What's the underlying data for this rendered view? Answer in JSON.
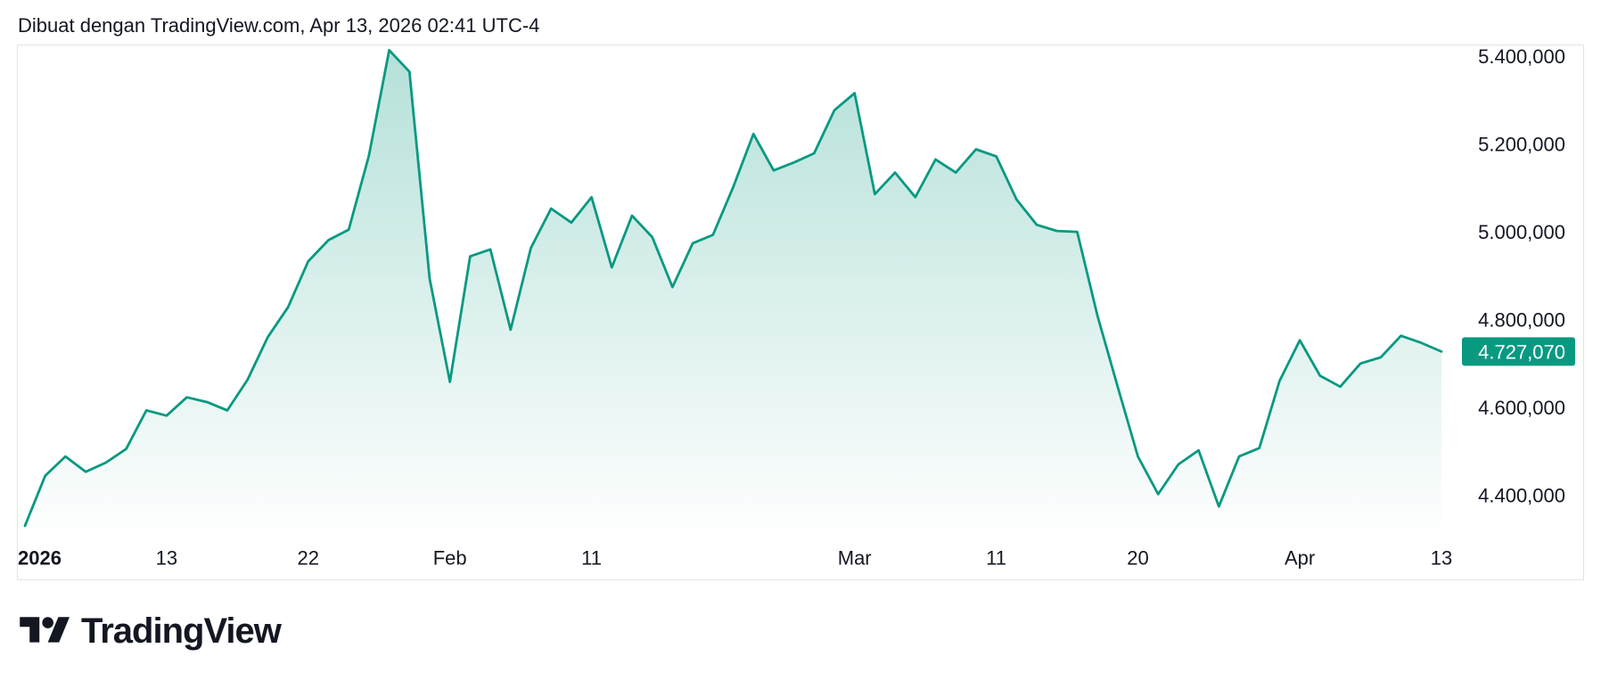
{
  "caption": "Dibuat dengan TradingView.com, Apr 13, 2026 02:41 UTC-4",
  "brand": {
    "wordmark": "TradingView",
    "icon": "tradingview-logo-icon"
  },
  "colors": {
    "accent": "#089981",
    "text": "#131722",
    "border": "#e0e3eb",
    "badge_text": "#ffffff"
  },
  "chart_data": {
    "type": "area",
    "x": [
      "2026-01-02",
      "2026-01-05",
      "2026-01-06",
      "2026-01-07",
      "2026-01-08",
      "2026-01-09",
      "2026-01-12",
      "2026-01-13",
      "2026-01-14",
      "2026-01-15",
      "2026-01-16",
      "2026-01-19",
      "2026-01-20",
      "2026-01-21",
      "2026-01-22",
      "2026-01-23",
      "2026-01-26",
      "2026-01-27",
      "2026-01-28",
      "2026-01-29",
      "2026-01-30",
      "2026-02-02",
      "2026-02-03",
      "2026-02-04",
      "2026-02-05",
      "2026-02-06",
      "2026-02-09",
      "2026-02-10",
      "2026-02-11",
      "2026-02-12",
      "2026-02-13",
      "2026-02-16",
      "2026-02-17",
      "2026-02-18",
      "2026-02-19",
      "2026-02-20",
      "2026-02-23",
      "2026-02-24",
      "2026-02-25",
      "2026-02-26",
      "2026-02-27",
      "2026-03-02",
      "2026-03-03",
      "2026-03-04",
      "2026-03-05",
      "2026-03-06",
      "2026-03-09",
      "2026-03-10",
      "2026-03-11",
      "2026-03-12",
      "2026-03-13",
      "2026-03-16",
      "2026-03-17",
      "2026-03-18",
      "2026-03-19",
      "2026-03-20",
      "2026-03-23",
      "2026-03-24",
      "2026-03-25",
      "2026-03-26",
      "2026-03-27",
      "2026-03-30",
      "2026-03-31",
      "2026-04-01",
      "2026-04-02",
      "2026-04-06",
      "2026-04-07",
      "2026-04-08",
      "2026-04-09",
      "2026-04-10",
      "2026-04-13"
    ],
    "series": [
      {
        "values": [
          4330000,
          4444000,
          4488000,
          4453000,
          4474000,
          4505000,
          4593000,
          4581000,
          4623000,
          4612000,
          4593000,
          4663000,
          4760000,
          4828000,
          4933000,
          4981000,
          5005000,
          5174000,
          5414000,
          5365000,
          4893000,
          4658000,
          4944000,
          4960000,
          4777000,
          4963000,
          5053000,
          5021000,
          5079000,
          4919000,
          5037000,
          4988000,
          4874000,
          4974000,
          4993000,
          5102000,
          5223000,
          5140000,
          5158000,
          5179000,
          5277000,
          5316000,
          5086000,
          5135000,
          5079000,
          5165000,
          5135000,
          5188000,
          5172000,
          5074000,
          5016000,
          5002000,
          5000000,
          4809000,
          4647000,
          4488000,
          4402000,
          4470000,
          4502000,
          4374000,
          4488000,
          4507000,
          4660000,
          4753000,
          4672000,
          4647000,
          4700000,
          4714000,
          4763000,
          4747000,
          4727070
        ]
      }
    ],
    "x_ticks": [
      {
        "label": "2026",
        "date": "2026-01-01"
      },
      {
        "label": "13",
        "date": "2026-01-13"
      },
      {
        "label": "22",
        "date": "2026-01-22"
      },
      {
        "label": "Feb",
        "date": "2026-02-02"
      },
      {
        "label": "11",
        "date": "2026-02-11"
      },
      {
        "label": "Mar",
        "date": "2026-03-02"
      },
      {
        "label": "11",
        "date": "2026-03-11"
      },
      {
        "label": "20",
        "date": "2026-03-20"
      },
      {
        "label": "Apr",
        "date": "2026-04-01"
      },
      {
        "label": "13",
        "date": "2026-04-13"
      }
    ],
    "y_ticks": [
      {
        "value": 5400000,
        "label": "5.400,000"
      },
      {
        "value": 5200000,
        "label": "5.200,000"
      },
      {
        "value": 5000000,
        "label": "5.000,000"
      },
      {
        "value": 4800000,
        "label": "4.800,000"
      },
      {
        "value": 4600000,
        "label": "4.600,000"
      },
      {
        "value": 4400000,
        "label": "4.400,000"
      }
    ],
    "ylim": [
      4295000,
      5426000
    ],
    "last_value": {
      "value": 4727070,
      "label": "4.727,070"
    },
    "grid": false,
    "legend": false
  }
}
